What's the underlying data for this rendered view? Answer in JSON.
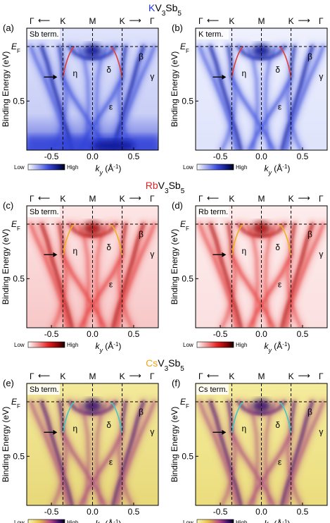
{
  "figure": {
    "groups": [
      {
        "compound_parts": [
          "K",
          "V",
          "3",
          "Sb",
          "5"
        ],
        "accent": "#1f35d6",
        "colormap": "blue",
        "panels": [
          {
            "label": "(a)",
            "term": "Sb term."
          },
          {
            "label": "(b)",
            "term": "K term."
          }
        ],
        "bracket_color": "#e23c3c"
      },
      {
        "compound_parts": [
          "Rb",
          "V",
          "3",
          "Sb",
          "5"
        ],
        "accent": "#e02020",
        "colormap": "red",
        "panels": [
          {
            "label": "(c)",
            "term": "Sb term."
          },
          {
            "label": "(d)",
            "term": "Rb term."
          }
        ],
        "bracket_color": "#f2b21b"
      },
      {
        "compound_parts": [
          "Cs",
          "V",
          "3",
          "Sb",
          "5"
        ],
        "accent": "#f0a41c",
        "colormap": "inferno",
        "panels": [
          {
            "label": "(e)",
            "term": "Sb term."
          },
          {
            "label": "(f)",
            "term": "Cs term."
          }
        ],
        "bracket_color": "#3fc7c7"
      }
    ],
    "top_symbols": {
      "gamma": "Γ",
      "k": "K",
      "m": "M",
      "arrow_left": "⟵",
      "arrow_right": "⟶"
    },
    "band_labels": {
      "beta": "β",
      "gamma": "γ",
      "delta": "δ",
      "epsilon": "ε",
      "eta": "η"
    },
    "y_axis": {
      "label": "Binding Energy (eV)",
      "ef_main": "E",
      "ef_sub": "F",
      "tick_05": "0.5"
    },
    "x_axis": {
      "label_k": "k",
      "label_y": "y",
      "label_unit": " (Å",
      "label_exp": "-1",
      "label_close": ")",
      "ticks": [
        "-0.5",
        "0.0",
        "0.5"
      ]
    },
    "colorbar": {
      "low": "Low",
      "high": "High"
    }
  }
}
